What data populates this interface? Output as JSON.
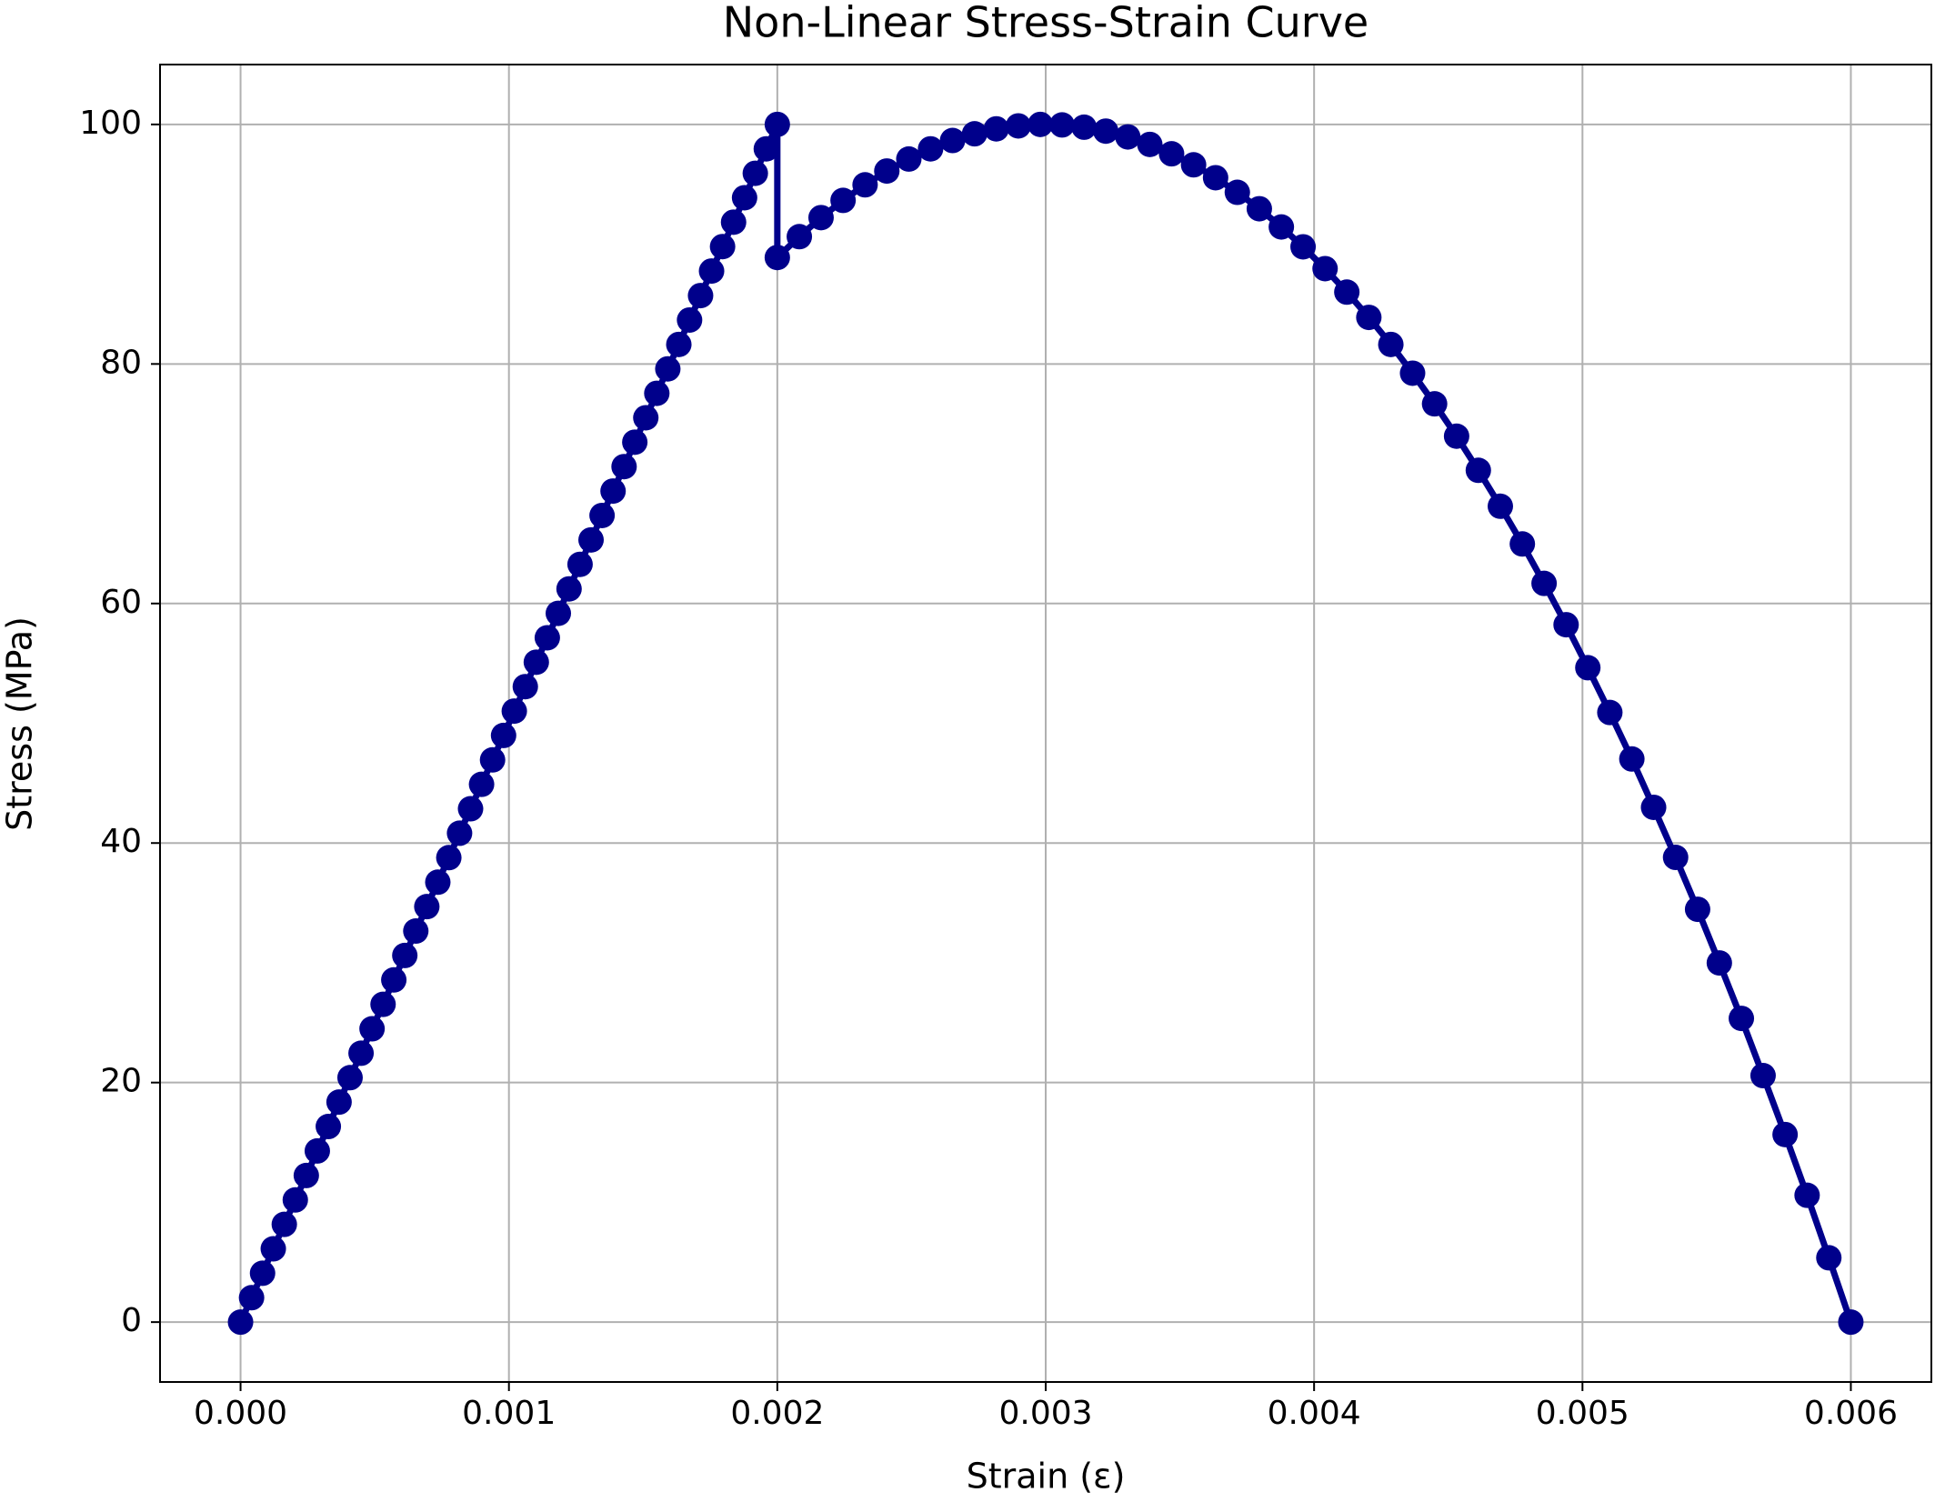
{
  "chart_data": {
    "type": "line",
    "title": "Non-Linear Stress-Strain Curve",
    "xlabel": "Strain (ε)",
    "ylabel": "Stress (MPa)",
    "color": "#00008b",
    "markers": true,
    "grid": true,
    "x": [
      0,
      4.1e-05,
      8.2e-05,
      0.000122,
      0.000163,
      0.000204,
      0.000245,
      0.000286,
      0.000327,
      0.000367,
      0.000408,
      0.000449,
      0.00049,
      0.000531,
      0.000571,
      0.000612,
      0.000653,
      0.000694,
      0.000735,
      0.000776,
      0.000816,
      0.000857,
      0.000898,
      0.000939,
      0.00098,
      0.00102,
      0.001061,
      0.001102,
      0.001143,
      0.001184,
      0.001224,
      0.001265,
      0.001306,
      0.001347,
      0.001388,
      0.001429,
      0.001469,
      0.00151,
      0.001551,
      0.001592,
      0.001633,
      0.001673,
      0.001714,
      0.001755,
      0.001796,
      0.001837,
      0.001878,
      0.001918,
      0.001959,
      0.002,
      0.002,
      0.002082,
      0.002163,
      0.002245,
      0.002327,
      0.002408,
      0.00249,
      0.002571,
      0.002653,
      0.002735,
      0.002816,
      0.002898,
      0.00298,
      0.003061,
      0.003143,
      0.003224,
      0.003306,
      0.003388,
      0.003469,
      0.003551,
      0.003633,
      0.003714,
      0.003796,
      0.003878,
      0.003959,
      0.004041,
      0.004122,
      0.004204,
      0.004286,
      0.004367,
      0.004449,
      0.004531,
      0.004612,
      0.004694,
      0.004776,
      0.004857,
      0.004939,
      0.00502,
      0.005102,
      0.005184,
      0.005265,
      0.005347,
      0.005429,
      0.00551,
      0.005592,
      0.005673,
      0.005755,
      0.005837,
      0.005918,
      0.006
    ],
    "values": [
      0,
      2.04,
      4.08,
      6.12,
      8.16,
      10.2,
      12.24,
      14.29,
      16.33,
      18.37,
      20.41,
      22.45,
      24.49,
      26.53,
      28.57,
      30.61,
      32.65,
      34.69,
      36.73,
      38.78,
      40.82,
      42.86,
      44.9,
      46.94,
      48.98,
      51.02,
      53.06,
      55.1,
      57.14,
      59.18,
      61.22,
      63.27,
      65.31,
      67.35,
      69.39,
      71.43,
      73.47,
      75.51,
      77.55,
      79.59,
      81.63,
      83.67,
      85.71,
      87.76,
      89.8,
      91.84,
      93.88,
      95.92,
      97.96,
      100,
      88.89,
      90.63,
      92.22,
      93.66,
      94.96,
      96.11,
      97.11,
      97.96,
      98.66,
      99.22,
      99.63,
      99.88,
      100,
      99.96,
      99.77,
      99.44,
      98.96,
      98.33,
      97.55,
      96.63,
      95.55,
      94.33,
      92.96,
      91.44,
      89.78,
      87.96,
      86,
      83.89,
      81.63,
      79.23,
      76.67,
      73.97,
      71.12,
      68.12,
      64.97,
      61.68,
      58.23,
      54.64,
      50.9,
      47.02,
      42.98,
      38.8,
      34.47,
      29.99,
      25.36,
      20.58,
      15.66,
      10.59,
      5.37,
      0
    ],
    "xlim": [
      -0.0003,
      0.0063
    ],
    "ylim": [
      -5,
      105
    ],
    "xticks": [
      {
        "value": 0,
        "label": "0.000"
      },
      {
        "value": 0.001,
        "label": "0.001"
      },
      {
        "value": 0.002,
        "label": "0.002"
      },
      {
        "value": 0.003,
        "label": "0.003"
      },
      {
        "value": 0.004,
        "label": "0.004"
      },
      {
        "value": 0.005,
        "label": "0.005"
      },
      {
        "value": 0.006,
        "label": "0.006"
      }
    ],
    "yticks": [
      0,
      20,
      40,
      60,
      80,
      100
    ]
  }
}
